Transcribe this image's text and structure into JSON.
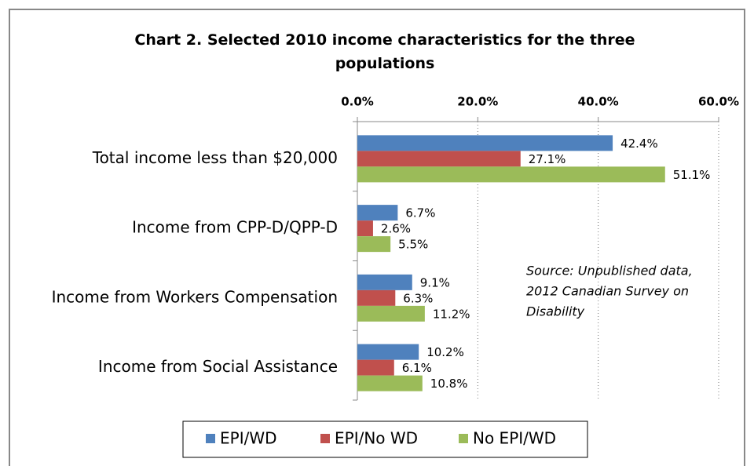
{
  "chart_data": {
    "type": "hbar",
    "title": "Chart 2. Selected 2010 income characteristics for the three populations",
    "categories": [
      "Total income  less than $20,000",
      "Income from CPP-D/QPP-D",
      "Income from Workers Compensation",
      "Income from Social Assistance"
    ],
    "series": [
      {
        "name": "EPI/WD",
        "color": "#4f81bd",
        "values": [
          42.4,
          6.7,
          9.1,
          10.2
        ],
        "value_labels": [
          "42.4%",
          "6.7%",
          "9.1%",
          "10.2%"
        ]
      },
      {
        "name": "EPI/No WD",
        "color": "#c0504d",
        "values": [
          27.1,
          2.6,
          6.3,
          6.1
        ],
        "value_labels": [
          "27.1%",
          "2.6%",
          "6.3%",
          "6.1%"
        ]
      },
      {
        "name": "No EPI/WD",
        "color": "#9bbb59",
        "values": [
          51.1,
          5.5,
          11.2,
          10.8
        ],
        "value_labels": [
          "51.1%",
          "5.5%",
          "11.2%",
          "10.8%"
        ]
      }
    ],
    "xlim": [
      0,
      60
    ],
    "xticks": [
      {
        "value": 0,
        "label": "0.0%"
      },
      {
        "value": 20,
        "label": "20.0%"
      },
      {
        "value": 40,
        "label": "40.0%"
      },
      {
        "value": 60,
        "label": "60.0%"
      }
    ],
    "grid": true,
    "annotation": [
      "Source: Unpublished data,",
      "2012 Canadian Survey on",
      "Disability"
    ],
    "legend": "bottom"
  }
}
